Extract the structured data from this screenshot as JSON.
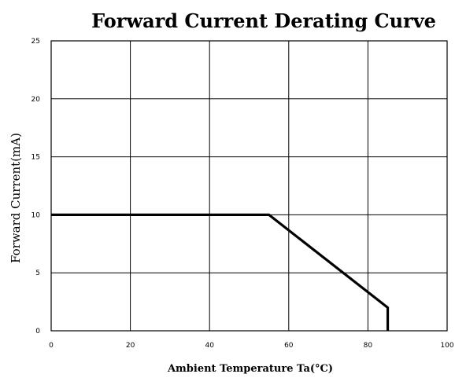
{
  "chart_data": {
    "type": "line",
    "title": "Forward Current Derating Curve",
    "xlabel": "Ambient Temperature Ta(°C)",
    "ylabel": "Forward Current(mA)",
    "xlim": [
      0,
      100
    ],
    "ylim": [
      0,
      25
    ],
    "x_ticks": [
      0,
      20,
      40,
      60,
      80,
      100
    ],
    "y_ticks": [
      0,
      5,
      10,
      15,
      20,
      25
    ],
    "grid": true,
    "series": [
      {
        "x": [
          0,
          55,
          85,
          85
        ],
        "y": [
          10,
          10,
          2,
          0
        ]
      }
    ],
    "colors": {
      "line": "#000000",
      "grid": "#000000",
      "background": "#ffffff"
    }
  }
}
